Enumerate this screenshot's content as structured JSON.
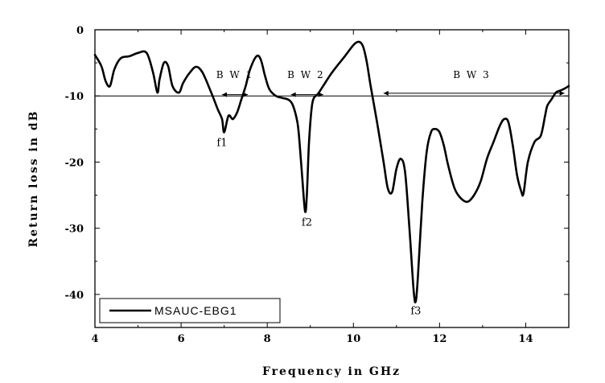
{
  "chart_data": {
    "type": "line",
    "xlabel": "Frequency in GHz",
    "ylabel": "Return loss in dB",
    "xlim": [
      4,
      15
    ],
    "ylim": [
      -45,
      0
    ],
    "xticks": [
      4,
      6,
      8,
      10,
      12,
      14
    ],
    "xtick_labels": [
      "4",
      "6",
      "8",
      "10",
      "12",
      "14"
    ],
    "yticks": [
      0,
      -10,
      -20,
      -30,
      -40
    ],
    "ytick_labels": [
      "0",
      "-10",
      "-20",
      "-30",
      "-40"
    ],
    "grid": false,
    "legend_position": "bottom-left",
    "reference_line": {
      "y": -10
    },
    "series": [
      {
        "name": "MSAUC-EBG1",
        "color": "#000000",
        "x": [
          4.0,
          4.15,
          4.25,
          4.35,
          4.45,
          4.6,
          4.8,
          5.0,
          5.2,
          5.35,
          5.45,
          5.5,
          5.6,
          5.7,
          5.8,
          5.95,
          6.05,
          6.2,
          6.35,
          6.5,
          6.7,
          6.85,
          6.95,
          7.0,
          7.1,
          7.2,
          7.3,
          7.4,
          7.5,
          7.6,
          7.75,
          7.85,
          7.95,
          8.05,
          8.2,
          8.35,
          8.5,
          8.6,
          8.7,
          8.75,
          8.82,
          8.88,
          8.92,
          8.97,
          9.05,
          9.2,
          9.5,
          9.8,
          10.05,
          10.2,
          10.3,
          10.4,
          10.55,
          10.7,
          10.8,
          10.9,
          11.0,
          11.1,
          11.2,
          11.3,
          11.4,
          11.45,
          11.5,
          11.6,
          11.7,
          11.8,
          11.9,
          12.0,
          12.1,
          12.2,
          12.35,
          12.5,
          12.65,
          12.8,
          12.95,
          13.1,
          13.25,
          13.4,
          13.5,
          13.6,
          13.7,
          13.8,
          13.9,
          13.95,
          14.05,
          14.2,
          14.35,
          14.45,
          14.5,
          14.6,
          14.7,
          14.8,
          14.9,
          15.0
        ],
        "y": [
          -3.8,
          -5.5,
          -7.8,
          -8.5,
          -6.0,
          -4.3,
          -4.0,
          -3.5,
          -3.5,
          -6.5,
          -9.5,
          -7.5,
          -5.0,
          -5.5,
          -8.5,
          -9.5,
          -8.0,
          -6.5,
          -5.6,
          -6.5,
          -9.5,
          -12.0,
          -13.5,
          -15.5,
          -13.0,
          -13.5,
          -12.5,
          -10.5,
          -8.5,
          -6.0,
          -4.0,
          -4.5,
          -7.0,
          -9.0,
          -10.0,
          -10.3,
          -10.6,
          -11.5,
          -14.0,
          -17.0,
          -23.0,
          -27.5,
          -25.0,
          -17.0,
          -11.0,
          -9.5,
          -6.5,
          -4.0,
          -2.0,
          -2.2,
          -4.5,
          -8.5,
          -14.0,
          -20.0,
          -24.0,
          -24.5,
          -21.0,
          -19.5,
          -21.5,
          -30.0,
          -39.5,
          -41.0,
          -37.0,
          -26.0,
          -18.5,
          -15.5,
          -15.0,
          -15.5,
          -17.5,
          -20.5,
          -24.0,
          -25.5,
          -26.0,
          -25.0,
          -23.0,
          -19.5,
          -17.0,
          -14.5,
          -13.5,
          -14.0,
          -17.5,
          -22.0,
          -24.5,
          -24.7,
          -20.0,
          -17.0,
          -16.0,
          -13.0,
          -11.5,
          -10.5,
          -9.5,
          -9.2,
          -8.9,
          -8.5
        ]
      }
    ],
    "annotations": {
      "bw1": {
        "label": "B W 1",
        "x_start": 6.95,
        "x_end": 7.55,
        "y": -9.8,
        "text_x": 7.25,
        "text_y": -7.3
      },
      "bw2": {
        "label": "B W 2",
        "x_start": 8.55,
        "x_end": 9.3,
        "y": -9.8,
        "text_x": 8.9,
        "text_y": -7.3
      },
      "bw3": {
        "label": "B W 3",
        "x_start": 10.7,
        "x_end": 14.9,
        "y": -9.6,
        "text_x": 12.75,
        "text_y": -7.3
      },
      "f1": {
        "label": "f1",
        "x": 6.95,
        "y": -17.6
      },
      "f2": {
        "label": "f2",
        "x": 8.92,
        "y": -29.6
      },
      "f3": {
        "label": "f3",
        "x": 11.45,
        "y": -43.0
      }
    }
  }
}
